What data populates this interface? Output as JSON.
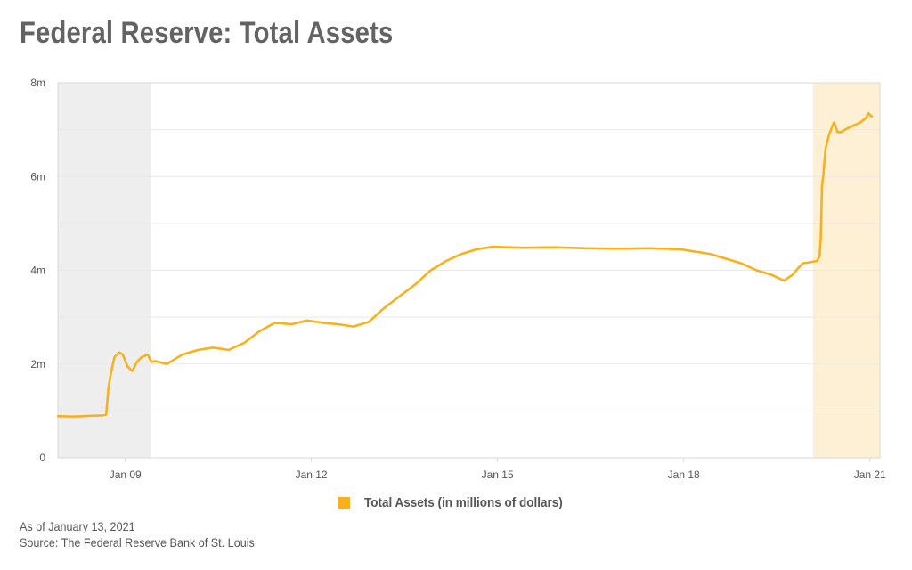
{
  "page": {
    "title": "Federal Reserve: Total Assets"
  },
  "notes": {
    "as_of": "As of January 13, 2021",
    "source": "Source: The Federal Reserve Bank of St. Louis"
  },
  "colors": {
    "series": "#f7b11f",
    "recession_shade": "#eeeeee",
    "current_shade": "#fdf0d5",
    "grid": "#e9e9e9",
    "frame": "#d8d8d8"
  },
  "chart_data": {
    "type": "line",
    "title": "Federal Reserve: Total Assets",
    "xlabel": "",
    "ylabel": "",
    "x_ticks": [
      "Jan 09",
      "Jan 12",
      "Jan 15",
      "Jan 18",
      "Jan 21"
    ],
    "y_ticks": [
      "0",
      "2m",
      "4m",
      "6m",
      "8m"
    ],
    "ylim": [
      0,
      8000000
    ],
    "xlim": [
      "2007-12-01",
      "2021-03-01"
    ],
    "grid": true,
    "legend_position": "bottom-center",
    "shaded_ranges": [
      {
        "from": "2007-12-01",
        "to": "2009-06-01",
        "kind": "recession"
      },
      {
        "from": "2020-02-01",
        "to": "2021-03-01",
        "kind": "current"
      }
    ],
    "series": [
      {
        "name": "Total Assets (in millions of dollars)",
        "x": [
          "2007-12-01",
          "2008-03-01",
          "2008-06-01",
          "2008-08-15",
          "2008-09-10",
          "2008-09-24",
          "2008-10-08",
          "2008-10-29",
          "2008-11-26",
          "2008-12-17",
          "2009-01-14",
          "2009-02-11",
          "2009-03-11",
          "2009-04-08",
          "2009-05-13",
          "2009-06-03",
          "2009-07-01",
          "2009-09-02",
          "2009-12-02",
          "2010-03-03",
          "2010-06-02",
          "2010-09-01",
          "2010-12-01",
          "2011-03-02",
          "2011-06-01",
          "2011-09-07",
          "2011-12-07",
          "2012-03-07",
          "2012-06-06",
          "2012-09-05",
          "2012-12-05",
          "2013-03-06",
          "2013-06-05",
          "2013-09-04",
          "2013-12-04",
          "2014-03-05",
          "2014-06-04",
          "2014-09-03",
          "2014-12-03",
          "2015-06-03",
          "2015-12-02",
          "2016-06-01",
          "2016-12-07",
          "2017-06-07",
          "2017-12-06",
          "2018-06-06",
          "2018-12-05",
          "2019-03-06",
          "2019-06-05",
          "2019-08-14",
          "2019-10-02",
          "2019-11-06",
          "2019-12-04",
          "2020-01-08",
          "2020-02-26",
          "2020-03-11",
          "2020-03-18",
          "2020-03-25",
          "2020-04-01",
          "2020-04-15",
          "2020-05-06",
          "2020-06-03",
          "2020-06-10",
          "2020-06-24",
          "2020-07-15",
          "2020-09-02",
          "2020-11-04",
          "2020-12-09",
          "2020-12-23",
          "2021-01-06",
          "2021-01-13"
        ],
        "values": [
          890000,
          880000,
          895000,
          905000,
          920000,
          1500000,
          1800000,
          2150000,
          2250000,
          2200000,
          1950000,
          1850000,
          2050000,
          2150000,
          2200000,
          2050000,
          2060000,
          2000000,
          2200000,
          2300000,
          2350000,
          2300000,
          2450000,
          2700000,
          2880000,
          2850000,
          2930000,
          2880000,
          2850000,
          2800000,
          2900000,
          3200000,
          3450000,
          3700000,
          4000000,
          4200000,
          4350000,
          4450000,
          4500000,
          4480000,
          4490000,
          4470000,
          4460000,
          4470000,
          4450000,
          4350000,
          4150000,
          4000000,
          3900000,
          3780000,
          3900000,
          4050000,
          4150000,
          4170000,
          4200000,
          4300000,
          4700000,
          5800000,
          6000000,
          6600000,
          6900000,
          7150000,
          7100000,
          6950000,
          6950000,
          7050000,
          7150000,
          7250000,
          7350000,
          7300000,
          7280000
        ]
      }
    ]
  }
}
